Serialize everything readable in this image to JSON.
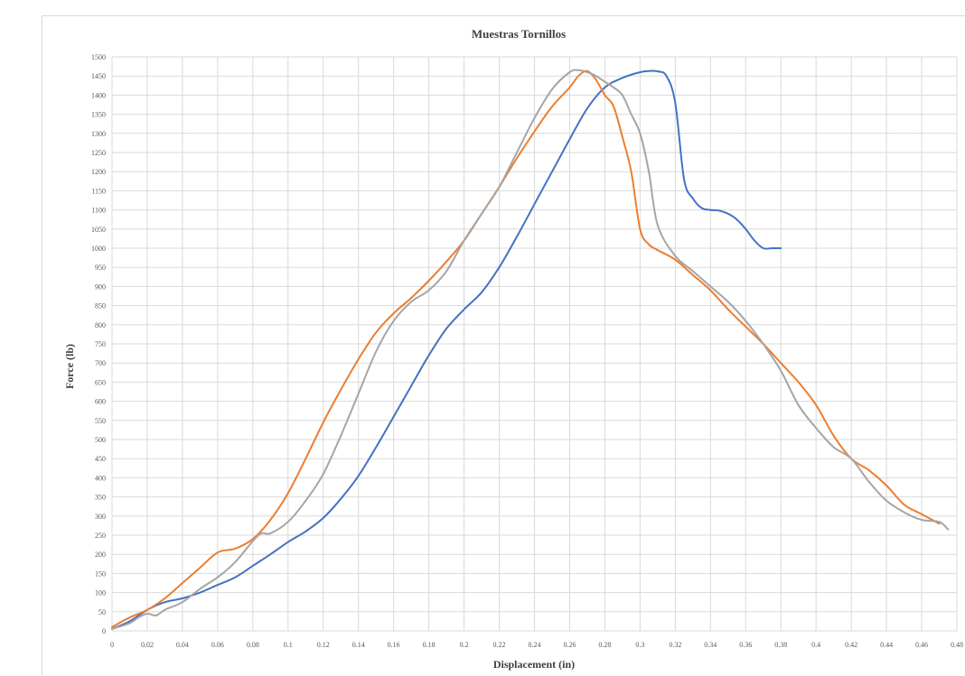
{
  "chart_data": {
    "type": "line",
    "title": "Muestras Tornillos",
    "xlabel": "Displacement (in)",
    "ylabel": "Force (lb)",
    "xlim": [
      0,
      0.48
    ],
    "ylim": [
      0,
      1500
    ],
    "x_ticks": [
      0,
      0.02,
      0.04,
      0.06,
      0.08,
      0.1,
      0.12,
      0.14,
      0.16,
      0.18,
      0.2,
      0.22,
      0.24,
      0.26,
      0.28,
      0.3,
      0.32,
      0.34,
      0.36,
      0.38,
      0.4,
      0.42,
      0.44,
      0.46,
      0.48
    ],
    "x_tick_labels": [
      "0",
      "0.02",
      "0.04",
      "0.06",
      "0.08",
      "0.1",
      "0.12",
      "0.14",
      "0.16",
      "0.18",
      "0.2",
      "0.22",
      "0.24",
      "0.26",
      "0.28",
      "0.3",
      "0.32",
      "0.34",
      "0.36",
      "0.38",
      "0.4",
      "0.42",
      "0.44",
      "0.46",
      "0.48"
    ],
    "y_ticks": [
      0,
      50,
      100,
      150,
      200,
      250,
      300,
      350,
      400,
      450,
      500,
      550,
      600,
      650,
      700,
      750,
      800,
      850,
      900,
      950,
      1000,
      1050,
      1100,
      1150,
      1200,
      1250,
      1300,
      1350,
      1400,
      1450,
      1500
    ],
    "grid": true,
    "series": [
      {
        "color": "#4472c4",
        "x": [
          0,
          0.01,
          0.02,
          0.03,
          0.04,
          0.05,
          0.06,
          0.07,
          0.08,
          0.09,
          0.1,
          0.11,
          0.12,
          0.13,
          0.14,
          0.15,
          0.16,
          0.17,
          0.18,
          0.19,
          0.2,
          0.21,
          0.22,
          0.23,
          0.24,
          0.25,
          0.26,
          0.27,
          0.28,
          0.29,
          0.3,
          0.305,
          0.31,
          0.315,
          0.32,
          0.325,
          0.33,
          0.335,
          0.34,
          0.345,
          0.35,
          0.355,
          0.36,
          0.365,
          0.37,
          0.375,
          0.38
        ],
        "y": [
          5,
          25,
          55,
          75,
          85,
          100,
          120,
          140,
          170,
          200,
          232,
          260,
          295,
          345,
          405,
          480,
          560,
          640,
          720,
          790,
          840,
          885,
          950,
          1030,
          1115,
          1200,
          1285,
          1365,
          1420,
          1445,
          1460,
          1463,
          1462,
          1450,
          1380,
          1180,
          1130,
          1105,
          1100,
          1098,
          1090,
          1075,
          1050,
          1020,
          1000,
          1000,
          1000
        ]
      },
      {
        "color": "#ed7d31",
        "x": [
          0,
          0.01,
          0.02,
          0.03,
          0.04,
          0.05,
          0.06,
          0.07,
          0.08,
          0.09,
          0.1,
          0.11,
          0.12,
          0.13,
          0.14,
          0.15,
          0.16,
          0.17,
          0.18,
          0.19,
          0.2,
          0.21,
          0.22,
          0.23,
          0.24,
          0.25,
          0.26,
          0.265,
          0.27,
          0.275,
          0.28,
          0.285,
          0.29,
          0.295,
          0.3,
          0.305,
          0.31,
          0.32,
          0.33,
          0.34,
          0.35,
          0.36,
          0.37,
          0.38,
          0.39,
          0.4,
          0.41,
          0.42,
          0.43,
          0.44,
          0.45,
          0.46,
          0.47
        ],
        "y": [
          10,
          35,
          55,
          85,
          125,
          165,
          205,
          215,
          240,
          290,
          360,
          450,
          545,
          630,
          710,
          780,
          830,
          870,
          915,
          965,
          1020,
          1090,
          1160,
          1235,
          1305,
          1370,
          1420,
          1450,
          1463,
          1440,
          1400,
          1370,
          1290,
          1200,
          1050,
          1010,
          995,
          970,
          930,
          890,
          840,
          795,
          750,
          700,
          650,
          590,
          510,
          450,
          420,
          380,
          330,
          305,
          280
        ]
      },
      {
        "color": "#a5a5a5",
        "x": [
          0,
          0.01,
          0.015,
          0.02,
          0.025,
          0.03,
          0.04,
          0.05,
          0.06,
          0.07,
          0.08,
          0.085,
          0.09,
          0.1,
          0.11,
          0.12,
          0.13,
          0.14,
          0.15,
          0.16,
          0.17,
          0.18,
          0.19,
          0.2,
          0.21,
          0.22,
          0.23,
          0.24,
          0.25,
          0.26,
          0.265,
          0.27,
          0.275,
          0.28,
          0.285,
          0.29,
          0.295,
          0.3,
          0.305,
          0.31,
          0.32,
          0.33,
          0.34,
          0.35,
          0.36,
          0.37,
          0.38,
          0.39,
          0.4,
          0.41,
          0.42,
          0.43,
          0.44,
          0.45,
          0.46,
          0.47,
          0.475
        ],
        "y": [
          5,
          20,
          35,
          45,
          40,
          55,
          75,
          110,
          140,
          180,
          235,
          255,
          255,
          285,
          340,
          410,
          510,
          620,
          730,
          810,
          860,
          890,
          940,
          1020,
          1090,
          1160,
          1250,
          1340,
          1415,
          1460,
          1465,
          1460,
          1450,
          1435,
          1420,
          1400,
          1350,
          1300,
          1200,
          1060,
          980,
          940,
          900,
          860,
          810,
          750,
          680,
          590,
          530,
          480,
          450,
          390,
          340,
          310,
          290,
          285,
          265
        ]
      }
    ]
  }
}
